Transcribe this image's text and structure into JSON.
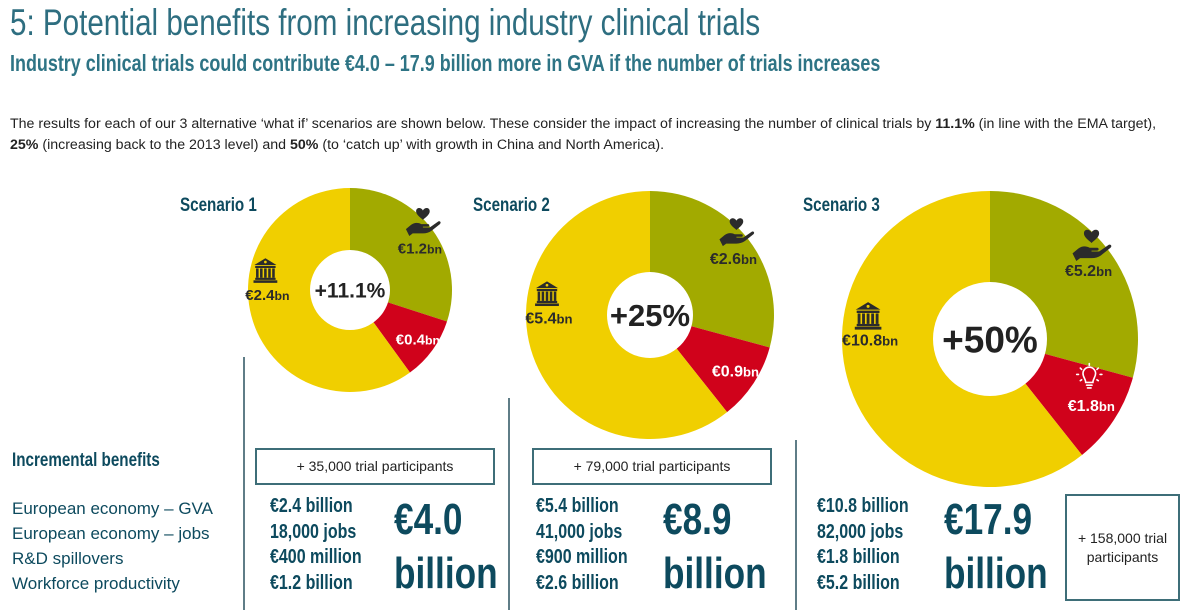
{
  "header": {
    "title": "5: Potential benefits from increasing industry clinical trials",
    "subtitle": "Industry clinical trials could contribute €4.0 – 17.9 billion more in GVA if the number of trials increases"
  },
  "intro": {
    "part1": "The results for each of our 3 alternative ‘what if’ scenarios are shown below. These consider the impact of increasing the number of clinical trials by ",
    "bold1": "11.1%",
    "part2": " (in line with the EMA target), ",
    "bold2": "25%",
    "part3": " (increasing back to the 2013 level) and ",
    "bold3": "50%",
    "part4": " (to ‘catch up’ with growth in China and North America)."
  },
  "colors": {
    "workforce": "#a2aa00",
    "rnd": "#d0021b",
    "economy": "#f0cf00",
    "text_dark": "#0d4a5e",
    "title": "#2e6e80"
  },
  "incremental": {
    "heading": "Incremental benefits",
    "labels": [
      "European economy – GVA",
      "European economy – jobs",
      "R&D spillovers",
      "Workforce productivity"
    ]
  },
  "scenarios": [
    {
      "label": "Scenario 1",
      "center": "+11.1%",
      "participants": "+ 35,000 trial participants",
      "values": [
        "€2.4 billion",
        "18,000 jobs",
        "€400 million",
        "€1.2 billion"
      ],
      "total_line1": "€4.0",
      "total_line2": "billion"
    },
    {
      "label": "Scenario 2",
      "center": "+25%",
      "participants": "+ 79,000 trial participants",
      "values": [
        "€5.4 billion",
        "41,000 jobs",
        "€900 million",
        "€2.6 billion"
      ],
      "total_line1": "€8.9",
      "total_line2": "billion"
    },
    {
      "label": "Scenario 3",
      "center": "+50%",
      "participants": "+ 158,000 trial participants",
      "values": [
        "€10.8 billion",
        "82,000 jobs",
        "€1.8 billion",
        "€5.2 billion"
      ],
      "total_line1": "€17.9",
      "total_line2": "billion"
    }
  ],
  "chart_data": [
    {
      "type": "pie",
      "title": "Scenario 1",
      "center_label": "+11.1%",
      "unit": "€bn",
      "slices": [
        {
          "name": "Workforce productivity",
          "value": 1.2,
          "label": "€1.2",
          "suffix": "bn",
          "icon": "heart-hand-icon"
        },
        {
          "name": "R&D spillovers",
          "value": 0.4,
          "label": "€0.4",
          "suffix": "bn",
          "icon": ""
        },
        {
          "name": "European economy – GVA",
          "value": 2.4,
          "label": "€2.4",
          "suffix": "bn",
          "icon": "bank-building-icon"
        }
      ]
    },
    {
      "type": "pie",
      "title": "Scenario 2",
      "center_label": "+25%",
      "unit": "€bn",
      "slices": [
        {
          "name": "Workforce productivity",
          "value": 2.6,
          "label": "€2.6",
          "suffix": "bn",
          "icon": "heart-hand-icon"
        },
        {
          "name": "R&D spillovers",
          "value": 0.9,
          "label": "€0.9",
          "suffix": "bn",
          "icon": ""
        },
        {
          "name": "European economy – GVA",
          "value": 5.4,
          "label": "€5.4",
          "suffix": "bn",
          "icon": "bank-building-icon"
        }
      ]
    },
    {
      "type": "pie",
      "title": "Scenario 3",
      "center_label": "+50%",
      "unit": "€bn",
      "slices": [
        {
          "name": "Workforce productivity",
          "value": 5.2,
          "label": "€5.2",
          "suffix": "bn",
          "icon": "heart-hand-icon"
        },
        {
          "name": "R&D spillovers",
          "value": 1.8,
          "label": "€1.8",
          "suffix": "bn",
          "icon": "lightbulb-icon"
        },
        {
          "name": "European economy – GVA",
          "value": 10.8,
          "label": "€10.8",
          "suffix": "bn",
          "icon": "bank-building-icon"
        }
      ]
    }
  ]
}
